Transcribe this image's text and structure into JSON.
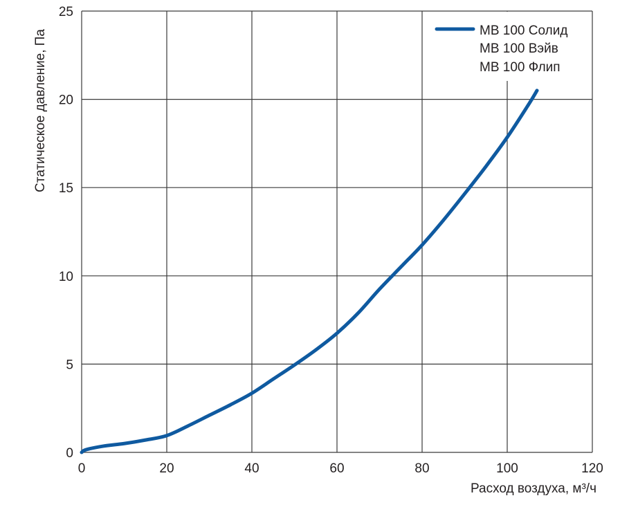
{
  "chart_data": {
    "type": "line",
    "title": "",
    "xlabel": "Расход воздуха, м³/ч",
    "ylabel": "Статическое давление, Па",
    "xlim": [
      0,
      120
    ],
    "ylim": [
      0,
      25
    ],
    "xticks": [
      0,
      20,
      40,
      60,
      80,
      100,
      120
    ],
    "yticks": [
      0,
      5,
      10,
      15,
      20,
      25
    ],
    "grid": true,
    "legend_position": "top-right",
    "legend": [
      "MB 100 Солид",
      "MB 100 Вэйв",
      "MB 100 Флип"
    ],
    "series": [
      {
        "name": "MB 100 Солид / Вэйв / Флип",
        "color": "#0f5aa0",
        "x": [
          0,
          1,
          5,
          10,
          15,
          20,
          25,
          30,
          35,
          40,
          45,
          50,
          55,
          60,
          65,
          70,
          75,
          80,
          85,
          90,
          95,
          100,
          105,
          107
        ],
        "y": [
          0,
          0.15,
          0.35,
          0.5,
          0.7,
          0.95,
          1.5,
          2.1,
          2.7,
          3.35,
          4.15,
          4.95,
          5.8,
          6.75,
          7.9,
          9.25,
          10.5,
          11.75,
          13.15,
          14.65,
          16.2,
          17.85,
          19.7,
          20.5
        ]
      }
    ]
  }
}
